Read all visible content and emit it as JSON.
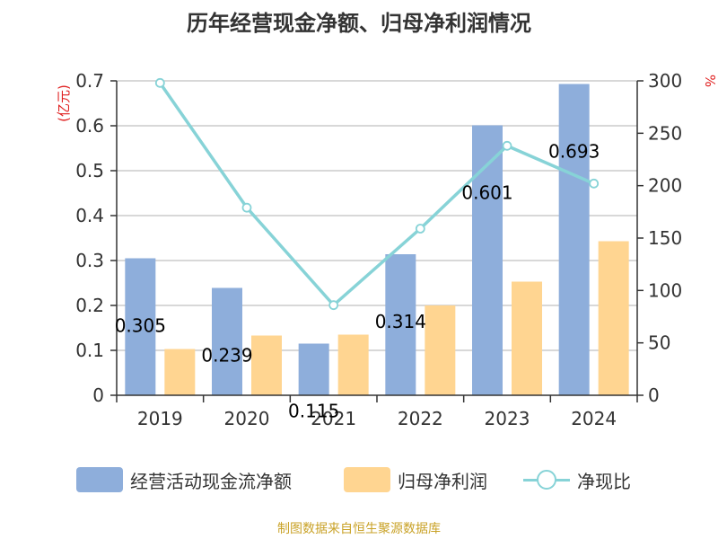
{
  "title": "历年经营现金净额、归母净利润情况",
  "source": "制图数据来自恒生聚源数据库",
  "chart_data": {
    "type": "bar",
    "categories": [
      "2019",
      "2020",
      "2021",
      "2022",
      "2023",
      "2024"
    ],
    "y_left": {
      "unit_label": "(亿元)",
      "ylim": [
        0,
        0.7
      ],
      "ticks": [
        "0",
        "0.1",
        "0.2",
        "0.3",
        "0.4",
        "0.5",
        "0.6",
        "0.7"
      ]
    },
    "y_right": {
      "unit_label": "%",
      "ylim": [
        0,
        300
      ],
      "ticks": [
        "0",
        "50",
        "100",
        "150",
        "200",
        "250",
        "300"
      ]
    },
    "grid": true,
    "legend_position": "bottom",
    "series": [
      {
        "name": "经营活动现金流净额",
        "type": "bar",
        "axis": "left",
        "color": "#8eaedb",
        "values": [
          0.305,
          0.239,
          0.115,
          0.314,
          0.601,
          0.693
        ],
        "data_labels": [
          "0.305",
          "0.239",
          "0.115",
          "0.314",
          "0.601",
          "0.693"
        ]
      },
      {
        "name": "归母净利润",
        "type": "bar",
        "axis": "left",
        "color": "#ffd591",
        "values": [
          0.103,
          0.133,
          0.135,
          0.2,
          0.253,
          0.343
        ]
      },
      {
        "name": "净现比",
        "type": "line",
        "axis": "right",
        "color": "#87d3d7",
        "values": [
          298,
          179,
          86,
          159,
          238,
          202
        ]
      }
    ]
  }
}
